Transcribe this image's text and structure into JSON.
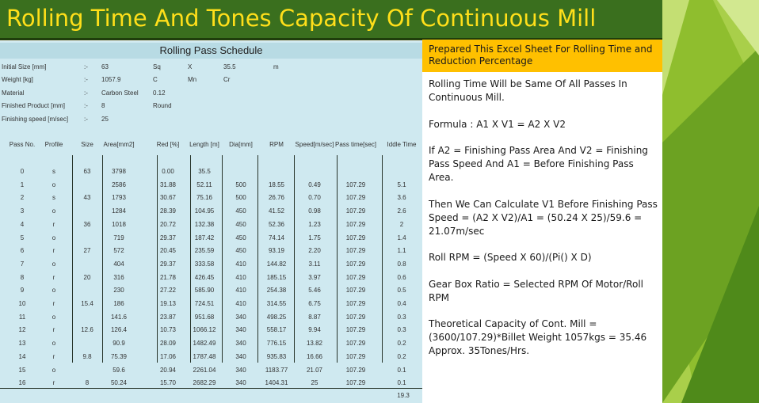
{
  "title": "Rolling Time And Tones Capacity Of Continuous Mill",
  "sheet": {
    "heading": "Rolling Pass Schedule",
    "info": [
      {
        "label": "Initial Size [mm]",
        "sep": ":-",
        "v1": "63",
        "v2": "Sq",
        "v3": "X",
        "v4": "35.5",
        "v5": "m"
      },
      {
        "label": "Weight [kg]",
        "sep": ":-",
        "v1": "1057.9",
        "v2": "C",
        "v3": "Mn",
        "v4": "Cr",
        "v5": ""
      },
      {
        "label": "Material",
        "sep": ":-",
        "v1": "Carbon Steel",
        "v2": "0.12",
        "v3": "",
        "v4": "",
        "v5": ""
      },
      {
        "label": "Finished Product [mm]",
        "sep": ":-",
        "v1": "8",
        "v2": "Round",
        "v3": "",
        "v4": "",
        "v5": ""
      },
      {
        "label": "Finishing speed [m/sec]",
        "sep": ":-",
        "v1": "25",
        "v2": "",
        "v3": "",
        "v4": "",
        "v5": ""
      }
    ],
    "headers": [
      "Pass No.",
      "Profile",
      "Size",
      "Area[mm2]",
      "Red [%]",
      "Length [m]",
      "Dia[mm]",
      "RPM",
      "Speed[m/sec]",
      "Pass time[sec]",
      "Iddle Time"
    ],
    "rows": [
      [
        "0",
        "s",
        "63",
        "3798",
        "0.00",
        "35.5",
        "",
        "",
        "",
        "",
        ""
      ],
      [
        "1",
        "o",
        "",
        "2586",
        "31.88",
        "52.11",
        "500",
        "18.55",
        "0.49",
        "107.29",
        "5.1"
      ],
      [
        "2",
        "s",
        "43",
        "1793",
        "30.67",
        "75.16",
        "500",
        "26.76",
        "0.70",
        "107.29",
        "3.6"
      ],
      [
        "3",
        "o",
        "",
        "1284",
        "28.39",
        "104.95",
        "450",
        "41.52",
        "0.98",
        "107.29",
        "2.6"
      ],
      [
        "4",
        "r",
        "36",
        "1018",
        "20.72",
        "132.38",
        "450",
        "52.36",
        "1.23",
        "107.29",
        "2"
      ],
      [
        "5",
        "o",
        "",
        "719",
        "29.37",
        "187.42",
        "450",
        "74.14",
        "1.75",
        "107.29",
        "1.4"
      ],
      [
        "6",
        "r",
        "27",
        "572",
        "20.45",
        "235.59",
        "450",
        "93.19",
        "2.20",
        "107.29",
        "1.1"
      ],
      [
        "7",
        "o",
        "",
        "404",
        "29.37",
        "333.58",
        "410",
        "144.82",
        "3.11",
        "107.29",
        "0.8"
      ],
      [
        "8",
        "r",
        "20",
        "316",
        "21.78",
        "426.45",
        "410",
        "185.15",
        "3.97",
        "107.29",
        "0.6"
      ],
      [
        "9",
        "o",
        "",
        "230",
        "27.22",
        "585.90",
        "410",
        "254.38",
        "5.46",
        "107.29",
        "0.5"
      ],
      [
        "10",
        "r",
        "15.4",
        "186",
        "19.13",
        "724.51",
        "410",
        "314.55",
        "6.75",
        "107.29",
        "0.4"
      ],
      [
        "11",
        "o",
        "",
        "141.6",
        "23.87",
        "951.68",
        "340",
        "498.25",
        "8.87",
        "107.29",
        "0.3"
      ],
      [
        "12",
        "r",
        "12.6",
        "126.4",
        "10.73",
        "1066.12",
        "340",
        "558.17",
        "9.94",
        "107.29",
        "0.3"
      ],
      [
        "13",
        "o",
        "",
        "90.9",
        "28.09",
        "1482.49",
        "340",
        "776.15",
        "13.82",
        "107.29",
        "0.2"
      ],
      [
        "14",
        "r",
        "9.8",
        "75.39",
        "17.06",
        "1787.48",
        "340",
        "935.83",
        "16.66",
        "107.29",
        "0.2"
      ],
      [
        "15",
        "o",
        "",
        "59.6",
        "20.94",
        "2261.04",
        "340",
        "1183.77",
        "21.07",
        "107.29",
        "0.1"
      ],
      [
        "16",
        "r",
        "8",
        "50.24",
        "15.70",
        "2682.29",
        "340",
        "1404.31",
        "25",
        "107.29",
        "0.1"
      ]
    ],
    "idle_total": "19.3"
  },
  "callout": "Prepared This Excel Sheet For Rolling Time and Reduction Percentage",
  "notes": [
    "Rolling Time Will be Same Of All Passes In Continuous Mill.",
    "Formula : A1 X V1 = A2 X V2",
    "If A2 = Finishing Pass Area And V2 = Finishing Pass Speed And A1 = Before Finishing Pass Area.",
    "Then We Can Calculate V1 Before Finishing Pass Speed = (A2 X V2)/A1 = (50.24 X 25)/59.6 = 21.07m/sec",
    "Roll RPM  = (Speed X 60)/(Pi() X D)",
    "Gear Box Ratio = Selected RPM Of Motor/Roll RPM",
    "Theoretical Capacity of Cont. Mill = (3600/107.29)*Billet  Weight 1057kgs = 35.46 Approx. 35Tones/Hrs."
  ],
  "colors": {
    "title_bg": "#3a6f1e",
    "title_text": "#ffdf1a",
    "callout_bg": "#ffc000",
    "sheet_bg": "#cfe9f0"
  }
}
